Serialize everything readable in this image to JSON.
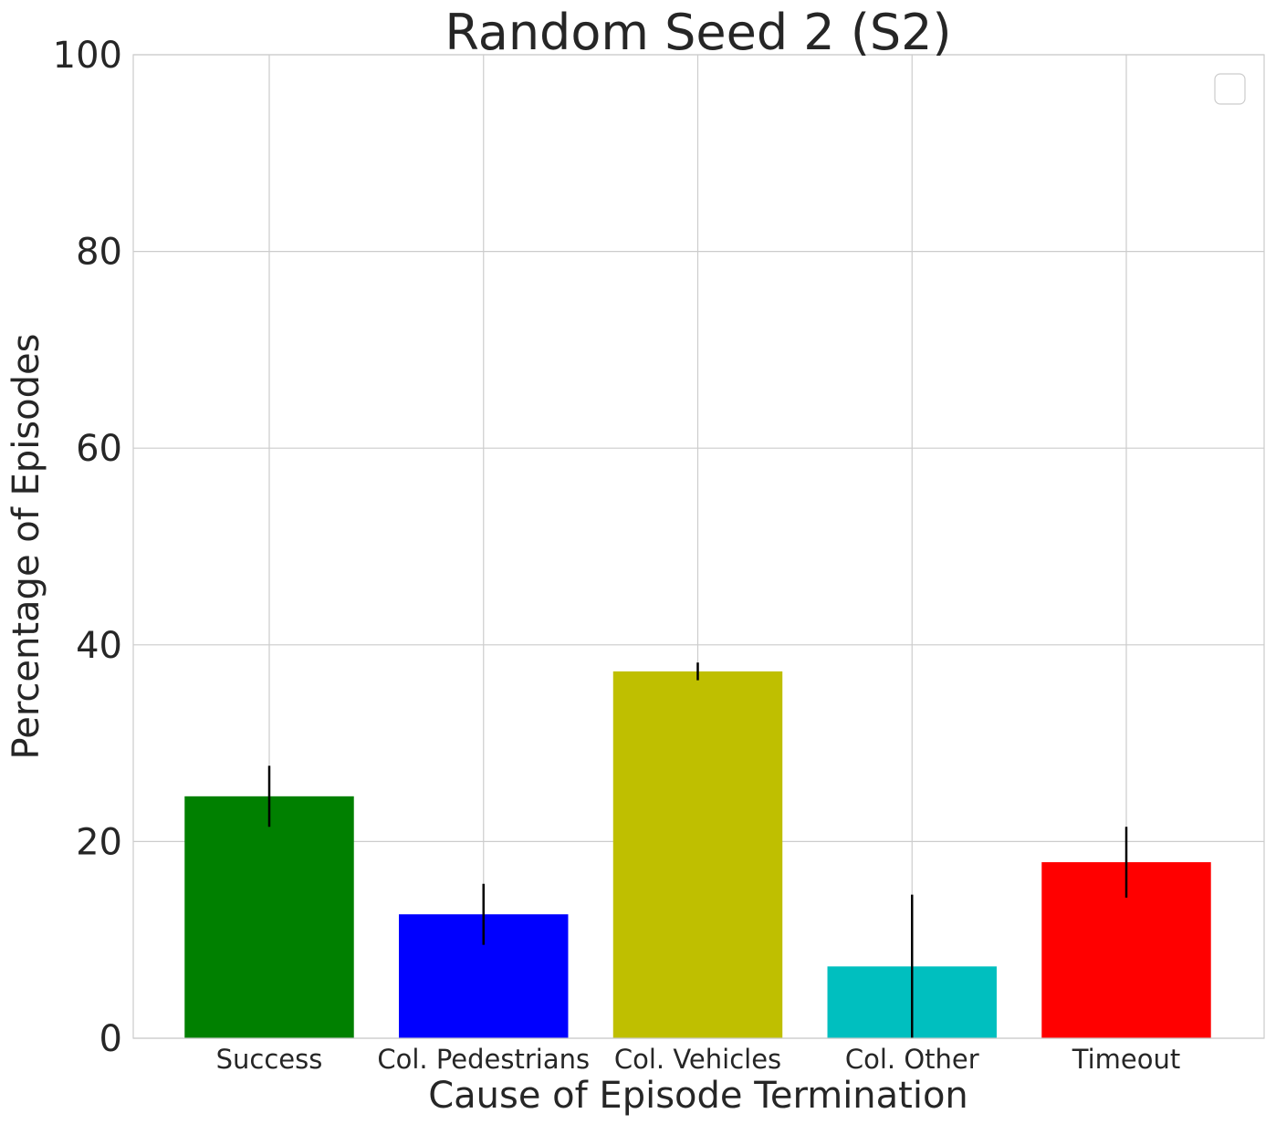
{
  "chart_data": {
    "type": "bar",
    "title": "Random Seed 2 (S2)",
    "xlabel": "Cause of Episode Termination",
    "ylabel": "Percentage of Episodes",
    "categories": [
      "Success",
      "Col. Pedestrians",
      "Col. Vehicles",
      "Col. Other",
      "Timeout"
    ],
    "values": [
      24.6,
      12.6,
      37.3,
      7.3,
      17.9
    ],
    "errors": [
      3.1,
      3.1,
      0.9,
      7.3,
      3.6
    ],
    "colors": [
      "#008000",
      "#0000ff",
      "#bfbf00",
      "#00bfbf",
      "#ff0000"
    ],
    "ylim": [
      0,
      100
    ],
    "yticks": [
      0,
      20,
      40,
      60,
      80,
      100
    ],
    "grid": true,
    "legend": {
      "placement": "top-right",
      "entries": []
    }
  }
}
